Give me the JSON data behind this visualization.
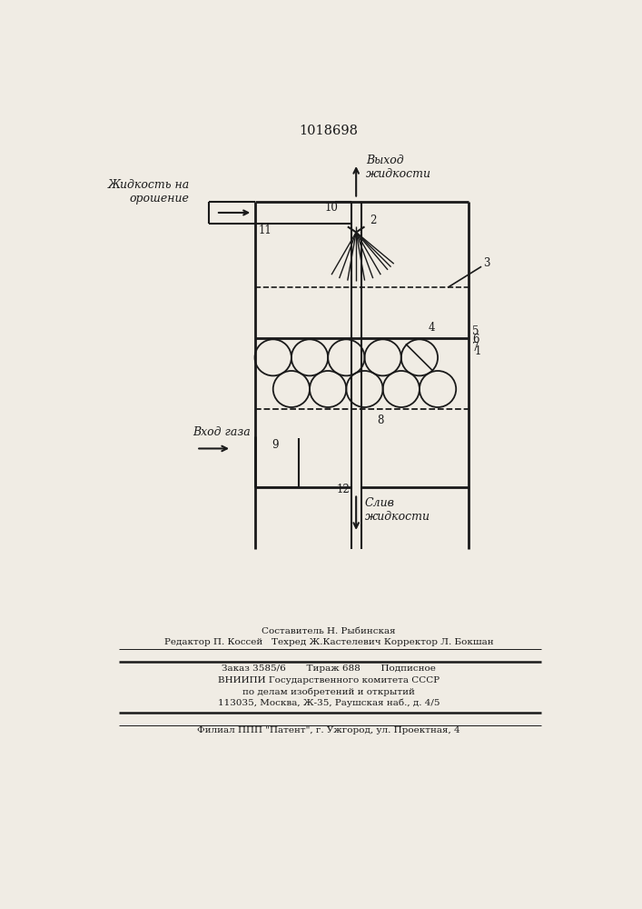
{
  "title": "1018698",
  "bg_color": "#f0ece4",
  "line_color": "#1a1a1a",
  "labels": {
    "liquid_in": "Жидкость на\nорошение",
    "liquid_out": "Выход\nжидкости",
    "gas_in": "Вход газа",
    "liquid_drain": "Слив\nжидкости"
  },
  "footer_lines": [
    "Составитель Н. Рыбинская",
    "Редактор П. Коссей   Техред Ж.Кастелевич Корректор Л. Бокшан",
    "Заказ 3585/6       Тираж 688       Подписное",
    "ВНИИПИ Государственного комитета СССР",
    "по делам изобретений и открытий",
    "113035, Москва, Ж-35, Раушская наб., д. 4/5",
    "Филиал ППП \"Патент\", г. Ужгород, ул. Проектная, 4"
  ]
}
